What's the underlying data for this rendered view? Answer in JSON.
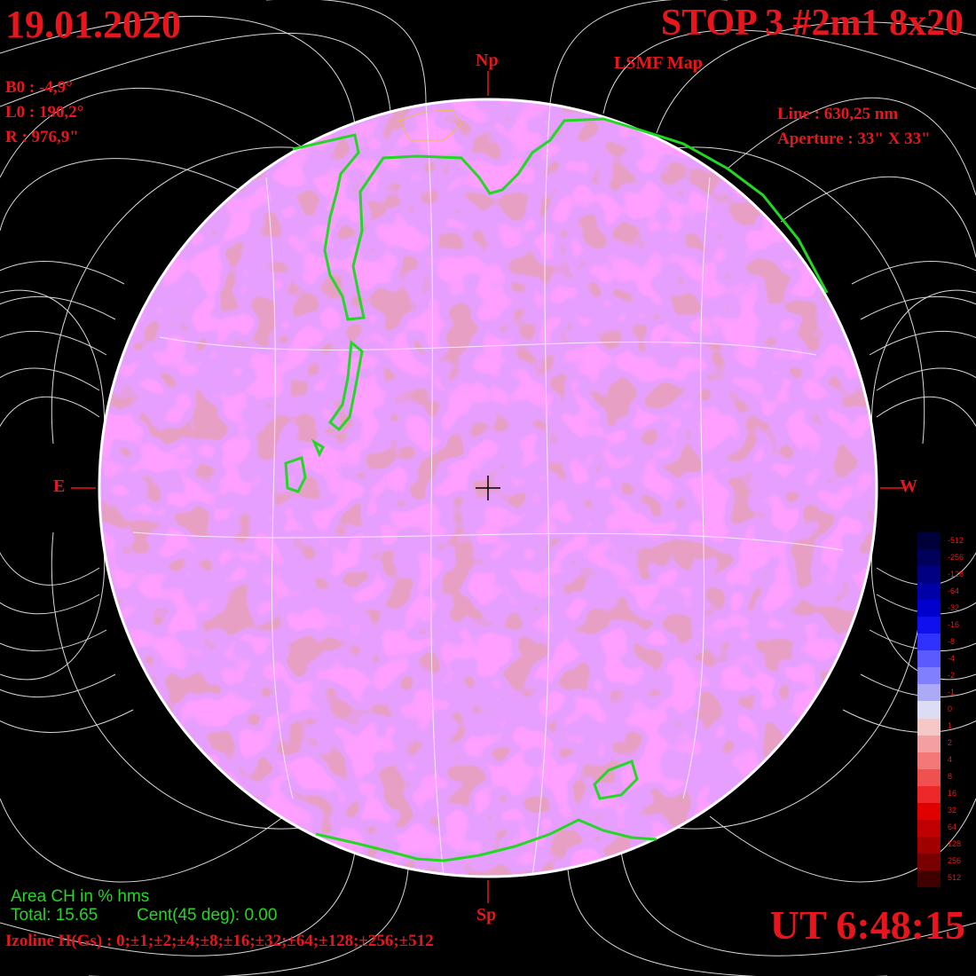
{
  "header": {
    "date": "19.01.2020",
    "title": "STOP 3 #2m1 8x20",
    "subtitle": "LSMF  Map"
  },
  "params": {
    "b0": "B0 : -4,9°",
    "l0": "L0 : 190,2°",
    "r": "R  : 976,9\"",
    "line": "Line : 630,25 nm",
    "aperture": "Aperture : 33\" X 33\""
  },
  "axes": {
    "north": "Np",
    "south": "Sp",
    "east": "E",
    "west": "W"
  },
  "coronal_hole_area": {
    "title": "Area CH in % hms",
    "total": "Total: 15.65",
    "center": "Cent(45 deg): 0.00"
  },
  "izoline": "Izoline H(Gs) : 0;±1;±2;±4;±8;±16;±32;±64;±128;±256;±512",
  "ut": "UT 6:48:15",
  "color_scale": {
    "labels": [
      "-512",
      "-256",
      "-128",
      "-64",
      "-32",
      "-16",
      "-8",
      "-4",
      "-2",
      "-1",
      "0",
      "1",
      "2",
      "4",
      "8",
      "16",
      "32",
      "64",
      "128",
      "256",
      "512"
    ],
    "colors": [
      "#00003a",
      "#00005a",
      "#000080",
      "#0000a8",
      "#0000cc",
      "#1010ee",
      "#3030ff",
      "#5a5aff",
      "#8080ff",
      "#aaaaf5",
      "#dcdcf4",
      "#f5c8c8",
      "#f5a0a0",
      "#f47878",
      "#f05050",
      "#ee2828",
      "#e00000",
      "#c00000",
      "#a00000",
      "#780000",
      "#400000"
    ]
  },
  "colors": {
    "text": "#e8161c",
    "coronal_hole_contour": "#22d822",
    "field_lines": "#ffffff",
    "background": "#000000"
  }
}
